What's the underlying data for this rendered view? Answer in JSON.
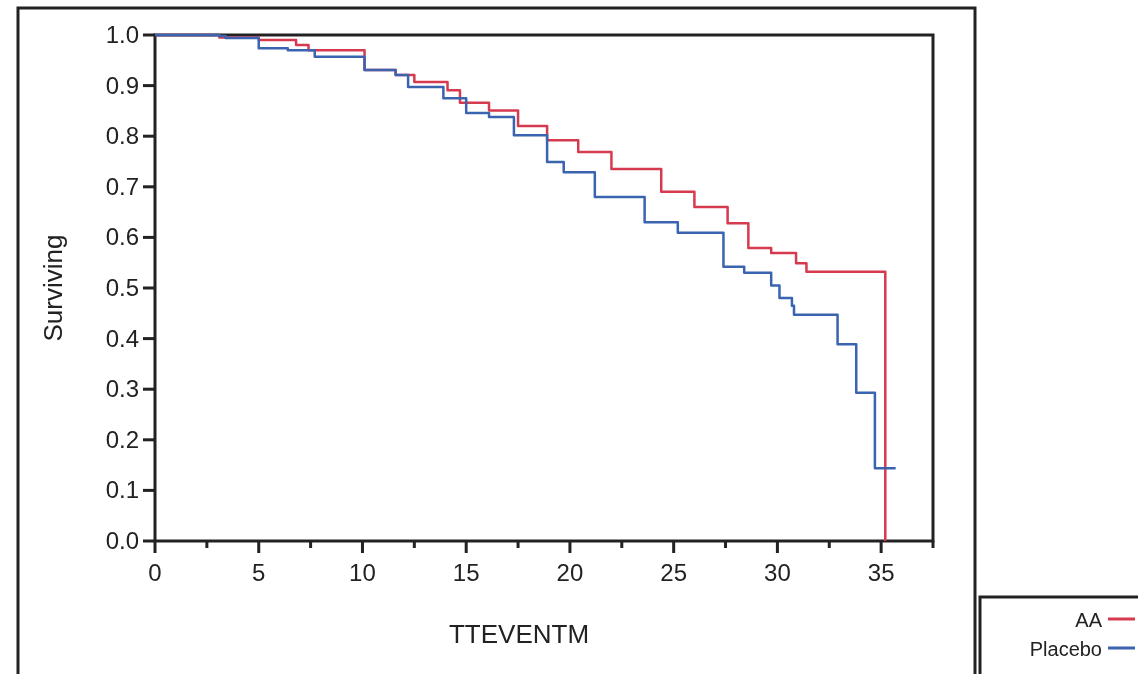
{
  "chart_data": {
    "type": "step",
    "xlabel": "TTEVENTM",
    "ylabel": "Surviving",
    "xlim": [
      0,
      37.5
    ],
    "ylim": [
      0,
      1
    ],
    "xticks": [
      0,
      {
        "value": 2.5,
        "label": null
      },
      5,
      {
        "value": 7.5,
        "label": null
      },
      10,
      {
        "value": 12.5,
        "label": null
      },
      15,
      {
        "value": 17.5,
        "label": null
      },
      20,
      {
        "value": 22.5,
        "label": null
      },
      25,
      {
        "value": 27.5,
        "label": null
      },
      30,
      {
        "value": 32.5,
        "label": null
      },
      35,
      {
        "value": 37.5,
        "label": null
      }
    ],
    "yticks": [
      {
        "value": 0,
        "label": "0.0"
      },
      0.1,
      0.2,
      0.3,
      0.4,
      0.5,
      0.6,
      0.7,
      0.8,
      0.9,
      {
        "value": 1,
        "label": "1.0"
      }
    ],
    "grid": false,
    "legend": "bottom right",
    "series": [
      {
        "name": "AA",
        "color": "#d63a4f",
        "x": [
          0,
          3.1,
          5.0,
          6.8,
          7.4,
          10.1,
          11.6,
          12.5,
          14.1,
          14.7,
          16.1,
          17.5,
          18.9,
          20.4,
          22.0,
          24.4,
          26.0,
          27.6,
          28.6,
          29.7,
          30.9,
          31.4,
          35.2
        ],
        "values": [
          1,
          0.995,
          0.99,
          0.98,
          0.97,
          0.931,
          0.921,
          0.907,
          0.891,
          0.866,
          0.851,
          0.82,
          0.792,
          0.769,
          0.735,
          0.69,
          0.66,
          0.628,
          0.579,
          0.569,
          0.549,
          0.532,
          0
        ]
      },
      {
        "name": "Placebo",
        "color": "#3a63b0",
        "x": [
          0,
          3.1,
          3.4,
          5.0,
          6.4,
          7.7,
          10.1,
          11.6,
          12.2,
          13.9,
          15.0,
          16.1,
          17.3,
          18.9,
          19.7,
          21.2,
          23.6,
          25.2,
          27.4,
          28.4,
          29.7,
          30.1,
          30.7,
          30.8,
          32.9,
          33.8,
          34.7,
          35.7
        ],
        "values": [
          1,
          0.998,
          0.994,
          0.974,
          0.97,
          0.957,
          0.931,
          0.921,
          0.897,
          0.875,
          0.846,
          0.838,
          0.802,
          0.749,
          0.729,
          0.68,
          0.63,
          0.609,
          0.542,
          0.53,
          0.505,
          0.48,
          0.465,
          0.447,
          0.389,
          0.293,
          0.144,
          0.144
        ]
      }
    ]
  }
}
